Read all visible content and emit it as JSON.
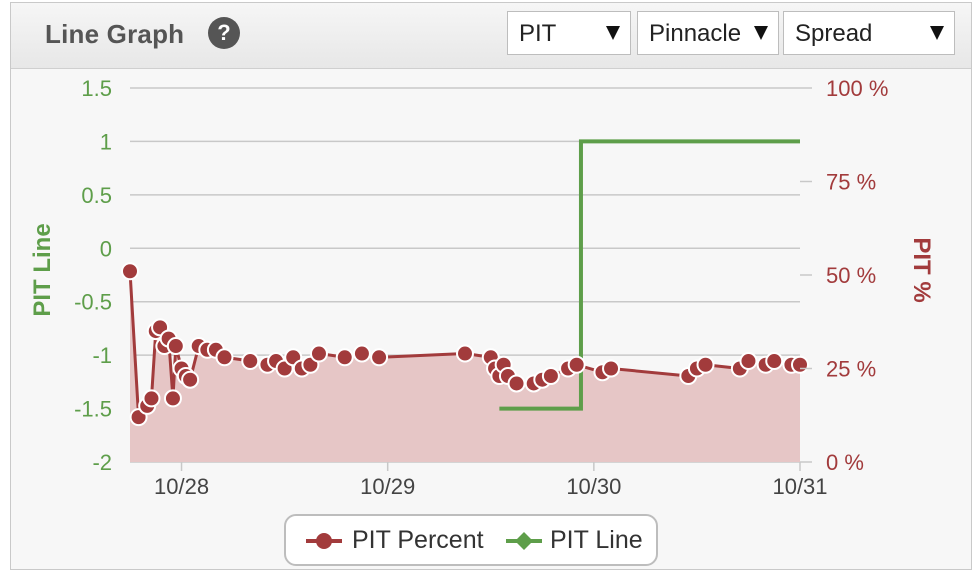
{
  "header": {
    "title": "Line Graph",
    "help_symbol": "?",
    "dropdowns": [
      {
        "value": "PIT"
      },
      {
        "value": "Pinnacle"
      },
      {
        "value": "Spread"
      }
    ]
  },
  "colors": {
    "line": "#5e9e4a",
    "percent": "#a23b3c",
    "percent_fill": "#e6c6c6",
    "grid": "#c8c8c8"
  },
  "chart_data": {
    "type": "line",
    "x_ticks": [
      "10/28",
      "10/29",
      "10/30",
      "10/31"
    ],
    "xlim": [
      "10/27 18:00",
      "10/31 00:00"
    ],
    "left_axis": {
      "label": "PIT Line",
      "ticks": [
        "1.5",
        "1",
        "0.5",
        "0",
        "-0.5",
        "-1",
        "-1.5",
        "-2"
      ],
      "ylim": [
        -2,
        1.5
      ]
    },
    "right_axis": {
      "label": "PIT %",
      "ticks": [
        "100 %",
        "75 %",
        "50 %",
        "25 %",
        "0 %"
      ],
      "ylim": [
        0,
        100
      ]
    },
    "legend": [
      "PIT Percent",
      "PIT Line"
    ],
    "series": [
      {
        "name": "PIT Percent",
        "axis": "right",
        "points": [
          [
            "10/27 18:00",
            51
          ],
          [
            "10/27 19:00",
            12
          ],
          [
            "10/27 20:00",
            15
          ],
          [
            "10/27 20:30",
            17
          ],
          [
            "10/27 21:00",
            35
          ],
          [
            "10/27 21:30",
            36
          ],
          [
            "10/27 22:00",
            31
          ],
          [
            "10/27 22:30",
            33
          ],
          [
            "10/27 23:00",
            17
          ],
          [
            "10/27 23:20",
            31
          ],
          [
            "10/28 00:00",
            25
          ],
          [
            "10/28 00:30",
            23
          ],
          [
            "10/28 01:00",
            22
          ],
          [
            "10/28 02:00",
            31
          ],
          [
            "10/28 03:00",
            30
          ],
          [
            "10/28 04:00",
            30
          ],
          [
            "10/28 05:00",
            28
          ],
          [
            "10/28 08:00",
            27
          ],
          [
            "10/28 10:00",
            26
          ],
          [
            "10/28 11:00",
            27
          ],
          [
            "10/28 12:00",
            25
          ],
          [
            "10/28 13:00",
            28
          ],
          [
            "10/28 14:00",
            25
          ],
          [
            "10/28 15:00",
            26
          ],
          [
            "10/28 16:00",
            29
          ],
          [
            "10/28 19:00",
            28
          ],
          [
            "10/28 21:00",
            29
          ],
          [
            "10/28 23:00",
            28
          ],
          [
            "10/29 09:00",
            29
          ],
          [
            "10/29 12:00",
            28
          ],
          [
            "10/29 12:30",
            25
          ],
          [
            "10/29 13:00",
            23
          ],
          [
            "10/29 13:30",
            26
          ],
          [
            "10/29 14:00",
            23
          ],
          [
            "10/29 15:00",
            21
          ],
          [
            "10/29 17:00",
            21
          ],
          [
            "10/29 18:00",
            22
          ],
          [
            "10/29 19:00",
            23
          ],
          [
            "10/29 21:00",
            25
          ],
          [
            "10/29 22:00",
            26
          ],
          [
            "10/30 01:00",
            24
          ],
          [
            "10/30 02:00",
            25
          ],
          [
            "10/30 11:00",
            23
          ],
          [
            "10/30 12:00",
            25
          ],
          [
            "10/30 13:00",
            26
          ],
          [
            "10/30 17:00",
            25
          ],
          [
            "10/30 18:00",
            27
          ],
          [
            "10/30 20:00",
            26
          ],
          [
            "10/30 21:00",
            27
          ],
          [
            "10/30 23:00",
            26
          ],
          [
            "10/31 00:00",
            26
          ]
        ]
      },
      {
        "name": "PIT Line",
        "axis": "left",
        "points": [
          [
            "10/29 13:00",
            -1.5
          ],
          [
            "10/29 22:30",
            -1.5
          ],
          [
            "10/29 22:30",
            1
          ],
          [
            "10/31 00:00",
            1
          ]
        ]
      }
    ]
  }
}
